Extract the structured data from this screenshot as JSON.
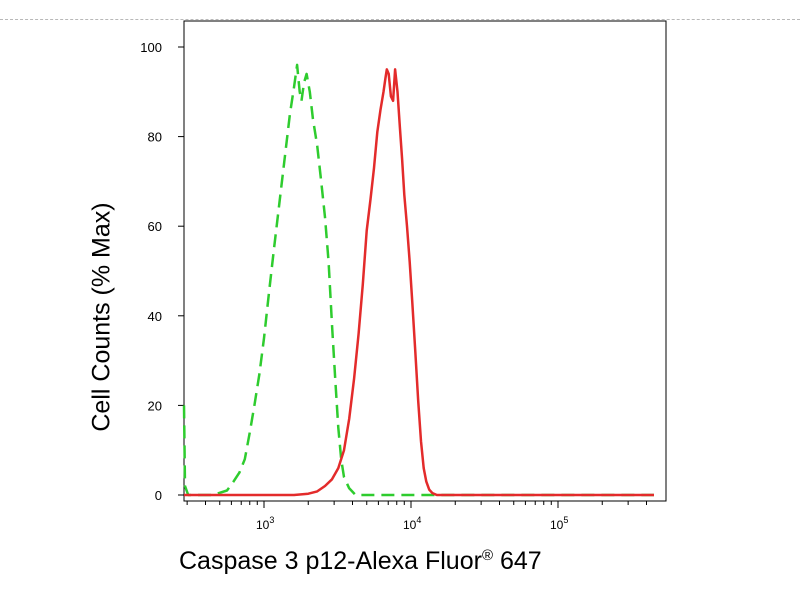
{
  "chart_data": {
    "type": "line",
    "ylabel": "Cell Counts (% Max)",
    "xlabel_parts": [
      "Caspase 3 p12-Alexa Fluor",
      "®",
      " 647"
    ],
    "x_scale": "log",
    "xlim": [
      270,
      450000
    ],
    "ylim": [
      0,
      100
    ],
    "yticks": [
      0,
      20,
      40,
      60,
      80,
      100
    ],
    "xticks": [
      {
        "value": 1000,
        "base": "10",
        "exp": "3"
      },
      {
        "value": 10000,
        "base": "10",
        "exp": "4"
      },
      {
        "value": 100000,
        "base": "10",
        "exp": "5"
      }
    ],
    "series": [
      {
        "color": "#2ecc2e",
        "style": "dashed",
        "x": [
          270,
          290,
          305,
          330,
          400,
          450,
          500,
          560,
          620,
          680,
          740,
          800,
          860,
          930,
          1000,
          1080,
          1170,
          1270,
          1380,
          1500,
          1600,
          1680,
          1750,
          1800,
          1870,
          1950,
          2050,
          2150,
          2300,
          2450,
          2600,
          2750,
          2900,
          3050,
          3200,
          3350,
          3500,
          3800,
          4200,
          4600,
          5000,
          6000,
          8000,
          12000,
          20000,
          50000,
          150000,
          450000
        ],
        "y": [
          20,
          2,
          0,
          0,
          0,
          0,
          0.5,
          1,
          3,
          5,
          8,
          14,
          20,
          27,
          35,
          45,
          55,
          65,
          75,
          85,
          91,
          96,
          90,
          88,
          92,
          94,
          90,
          84,
          78,
          70,
          62,
          52,
          38,
          26,
          15,
          8,
          4,
          1.5,
          0,
          0,
          0,
          0,
          0,
          0,
          0,
          0,
          0,
          0
        ]
      },
      {
        "color": "#e32b2b",
        "style": "solid",
        "x": [
          270,
          1000,
          1600,
          2000,
          2300,
          2600,
          2900,
          3200,
          3500,
          3800,
          4100,
          4400,
          4700,
          5000,
          5300,
          5600,
          5900,
          6200,
          6500,
          6700,
          6850,
          7050,
          7300,
          7550,
          7800,
          8100,
          8400,
          8700,
          9000,
          9400,
          9800,
          10200,
          10700,
          11200,
          11700,
          12200,
          12700,
          13300,
          14000,
          15000,
          17000,
          20000,
          50000,
          150000,
          450000
        ],
        "y": [
          0,
          0,
          0,
          0.3,
          0.8,
          2,
          3.5,
          6,
          10,
          17,
          26,
          36,
          47,
          59,
          66,
          73,
          81,
          86,
          90,
          93,
          95,
          94,
          89,
          88,
          95,
          90,
          82,
          75,
          67,
          60,
          52,
          43,
          32,
          21,
          12,
          6,
          3,
          1.2,
          0.4,
          0,
          0,
          0,
          0,
          0,
          0
        ]
      }
    ]
  }
}
